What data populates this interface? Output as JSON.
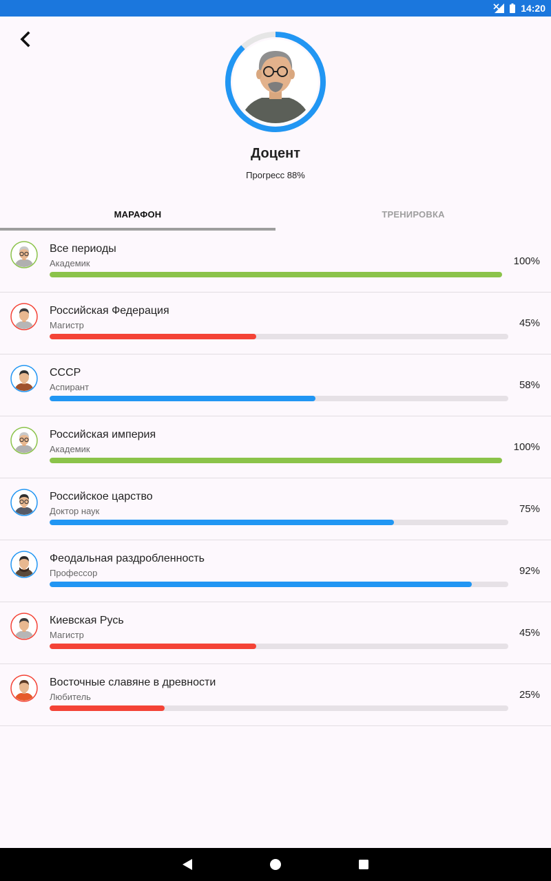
{
  "status_bar": {
    "time": "14:20",
    "signal_icon": "signal-off-icon",
    "battery_icon": "battery-icon",
    "color": "#1b77dd"
  },
  "header": {
    "back_icon": "back-arrow-icon",
    "rank": "Доцент",
    "progress_label": "Прогресс 88%",
    "progress_fraction": 0.88,
    "ring_color": "#2196f3"
  },
  "tabs": [
    {
      "label": "МАРАФОН",
      "active": true
    },
    {
      "label": "ТРЕНИРОВКА",
      "active": false
    }
  ],
  "colors": {
    "green": "#8bc34a",
    "red": "#f44336",
    "blue": "#2196f3",
    "track": "#e6e1e6"
  },
  "periods": [
    {
      "title": "Все периоды",
      "rank": "Академик",
      "percent": 100,
      "percent_label": "100%",
      "color": "#8bc34a",
      "avatar": "academic-avatar-icon"
    },
    {
      "title": "Российская Федерация",
      "rank": "Магистр",
      "percent": 45,
      "percent_label": "45%",
      "color": "#f44336",
      "avatar": "master-avatar-icon"
    },
    {
      "title": "СССР",
      "rank": "Аспирант",
      "percent": 58,
      "percent_label": "58%",
      "color": "#2196f3",
      "avatar": "postgrad-avatar-icon"
    },
    {
      "title": "Российская империя",
      "rank": "Академик",
      "percent": 100,
      "percent_label": "100%",
      "color": "#8bc34a",
      "avatar": "academic-avatar-icon"
    },
    {
      "title": "Российское царство",
      "rank": "Доктор наук",
      "percent": 75,
      "percent_label": "75%",
      "color": "#2196f3",
      "avatar": "doctor-avatar-icon"
    },
    {
      "title": "Феодальная раздробленность",
      "rank": "Профессор",
      "percent": 92,
      "percent_label": "92%",
      "color": "#2196f3",
      "avatar": "professor-avatar-icon"
    },
    {
      "title": "Киевская Русь",
      "rank": "Магистр",
      "percent": 45,
      "percent_label": "45%",
      "color": "#f44336",
      "avatar": "master-avatar-icon"
    },
    {
      "title": "Восточные славяне в древности",
      "rank": "Любитель",
      "percent": 25,
      "percent_label": "25%",
      "color": "#f44336",
      "avatar": "amateur-avatar-icon"
    }
  ],
  "nav_bar": {
    "back_icon": "nav-back-icon",
    "home_icon": "nav-home-icon",
    "recents_icon": "nav-recents-icon"
  }
}
